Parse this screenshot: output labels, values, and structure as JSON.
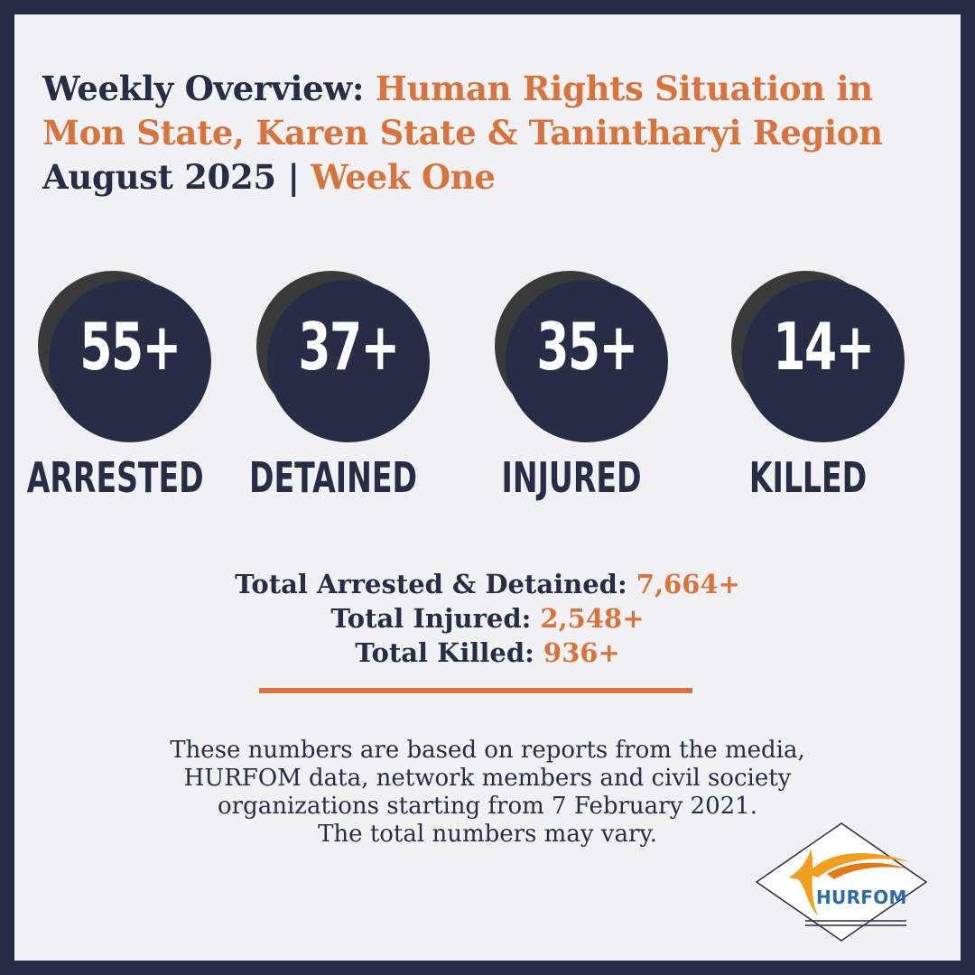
{
  "title": {
    "part1": "Weekly Overview: ",
    "part2": "Human Rights Situation in",
    "part3": "Mon State, Karen State & Tanintharyi Region",
    "part4": "August 2025 | ",
    "part5": "Week One"
  },
  "stats": [
    {
      "value": "55+",
      "label": "ARRESTED"
    },
    {
      "value": "37+",
      "label": "DETAINED"
    },
    {
      "value": "35+",
      "label": "INJURED"
    },
    {
      "value": "14+",
      "label": "KILLED"
    }
  ],
  "totals": [
    {
      "label": "Total Arrested & Detained: ",
      "value": "7,664+"
    },
    {
      "label": "Total Injured: ",
      "value": "2,548+"
    },
    {
      "label": "Total Killed: ",
      "value": "936+"
    }
  ],
  "note": [
    "These numbers are based on reports from the media,",
    "HURFOM data, network members and civil society",
    "organizations starting from 7 February 2021.",
    "The total numbers may vary."
  ],
  "logo": {
    "text": "HURFOM"
  },
  "colors": {
    "navy": "#262d45",
    "orange": "#d7733f",
    "background": "#f1f1f3",
    "logo_blue": "#2f6aa6",
    "logo_orange": "#f0a020"
  }
}
